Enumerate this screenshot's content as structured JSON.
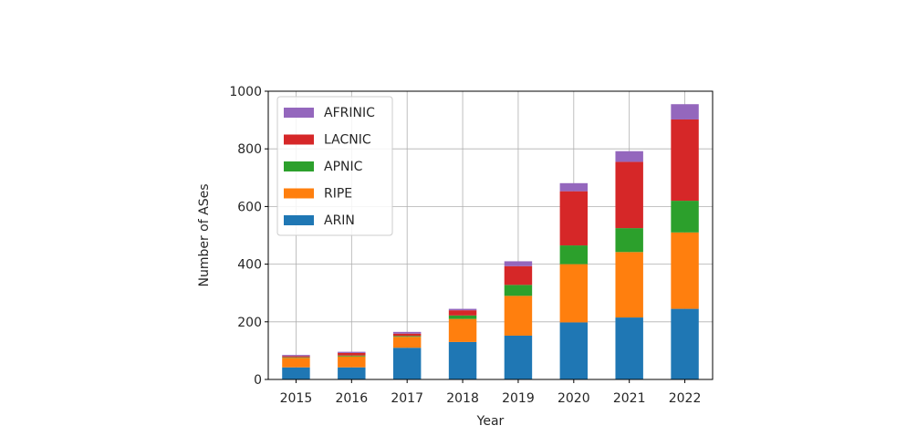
{
  "chart_data": {
    "type": "bar",
    "stacked": true,
    "categories": [
      "2015",
      "2016",
      "2017",
      "2018",
      "2019",
      "2020",
      "2021",
      "2022"
    ],
    "series": [
      {
        "name": "ARIN",
        "color": "#1f77b4",
        "values": [
          42,
          42,
          110,
          130,
          152,
          198,
          215,
          245
        ]
      },
      {
        "name": "RIPE",
        "color": "#ff7f0e",
        "values": [
          33,
          38,
          38,
          80,
          138,
          202,
          227,
          265
        ]
      },
      {
        "name": "APNIC",
        "color": "#2ca02c",
        "values": [
          2,
          3,
          3,
          12,
          38,
          65,
          83,
          110
        ]
      },
      {
        "name": "LACNIC",
        "color": "#d62728",
        "values": [
          4,
          9,
          8,
          18,
          65,
          188,
          230,
          282
        ]
      },
      {
        "name": "AFRINIC",
        "color": "#9467bd",
        "values": [
          4,
          4,
          6,
          5,
          17,
          28,
          37,
          53
        ]
      }
    ],
    "xlabel": "Year",
    "ylabel": "Number of ASes",
    "ylim": [
      0,
      1000
    ],
    "yticks": [
      0,
      200,
      400,
      600,
      800,
      1000
    ],
    "grid": true,
    "legend_position": "top-left",
    "legend_order": [
      "AFRINIC",
      "LACNIC",
      "APNIC",
      "RIPE",
      "ARIN"
    ]
  }
}
